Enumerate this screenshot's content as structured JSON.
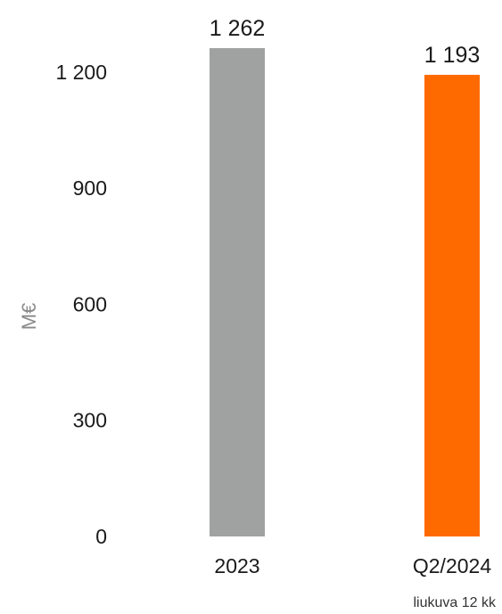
{
  "chart_data": {
    "type": "bar",
    "categories": [
      "2023",
      "Q2/2024"
    ],
    "values": [
      1262,
      1193
    ],
    "value_labels": [
      "1 262",
      "1 193"
    ],
    "colors": [
      "#a0a2a2",
      "#ff6a00"
    ],
    "ylabel": "M€",
    "xlabel": "",
    "ylim": [
      0,
      1262
    ],
    "yticks": [
      0,
      300,
      600,
      900,
      1200
    ],
    "ytick_labels": [
      "0",
      "300",
      "600",
      "900",
      "1 200"
    ],
    "grid": false,
    "legend": "none",
    "footnote": "liukuva 12 kk"
  }
}
